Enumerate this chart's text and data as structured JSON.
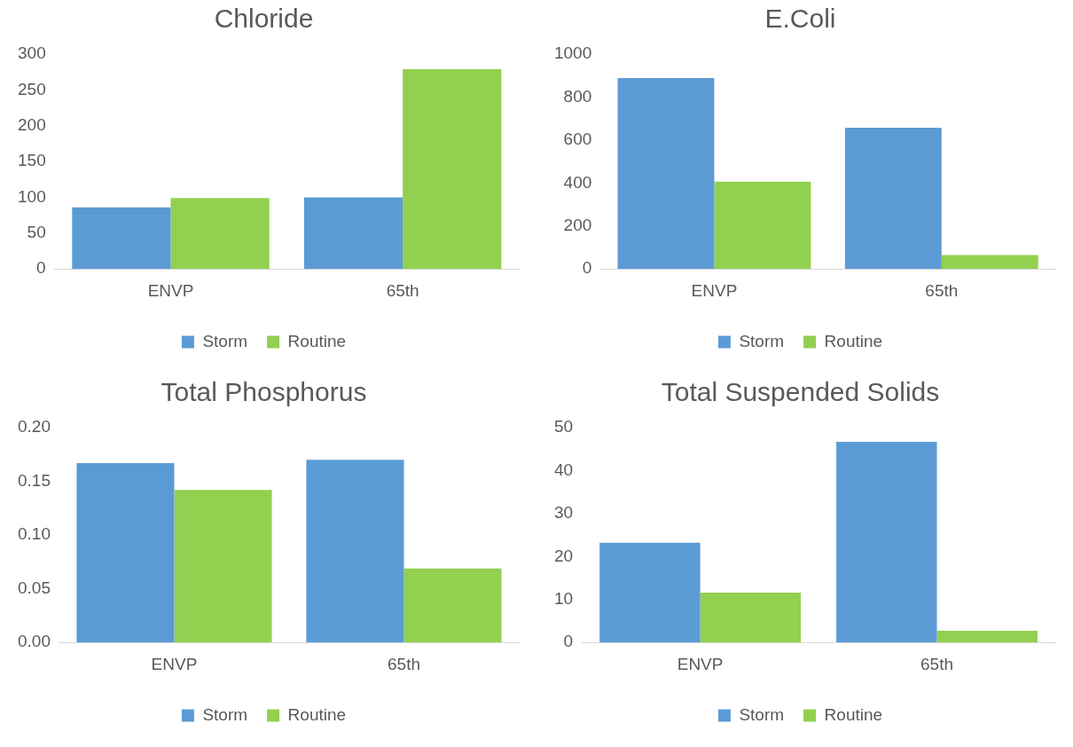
{
  "chart_data": [
    {
      "type": "bar",
      "title": "Chloride",
      "categories": [
        "ENVP",
        "65th"
      ],
      "series": [
        {
          "name": "Storm",
          "color": "#5b9bd5",
          "values": [
            86,
            100
          ]
        },
        {
          "name": "Routine",
          "color": "#92d050",
          "values": [
            99,
            279
          ]
        }
      ],
      "ylim": [
        0,
        300
      ],
      "yticks": [
        0,
        50,
        100,
        150,
        200,
        250,
        300
      ],
      "grid": false,
      "legend": "bottom"
    },
    {
      "type": "bar",
      "title": "E.Coli",
      "categories": [
        "ENVP",
        "65th"
      ],
      "series": [
        {
          "name": "Storm",
          "color": "#5b9bd5",
          "values": [
            889,
            657
          ]
        },
        {
          "name": "Routine",
          "color": "#92d050",
          "values": [
            407,
            65
          ]
        }
      ],
      "ylim": [
        0,
        1000
      ],
      "yticks": [
        0,
        200,
        400,
        600,
        800,
        1000
      ],
      "grid": false,
      "legend": "bottom"
    },
    {
      "type": "bar",
      "title": "Total Phosphorus",
      "categories": [
        "ENVP",
        "65th"
      ],
      "series": [
        {
          "name": "Storm",
          "color": "#5b9bd5",
          "values": [
            0.167,
            0.17
          ]
        },
        {
          "name": "Routine",
          "color": "#92d050",
          "values": [
            0.142,
            0.069
          ]
        }
      ],
      "ylim": [
        0,
        0.2
      ],
      "yticks": [
        {
          "value": 0,
          "label": "0.00"
        },
        {
          "value": 0.05,
          "label": "0.05"
        },
        {
          "value": 0.1,
          "label": "0.10"
        },
        {
          "value": 0.15,
          "label": "0.15"
        },
        {
          "value": 0.2,
          "label": "0.20"
        }
      ],
      "grid": false,
      "legend": "bottom"
    },
    {
      "type": "bar",
      "title": "Total Suspended Solids",
      "categories": [
        "ENVP",
        "65th"
      ],
      "series": [
        {
          "name": "Storm",
          "color": "#5b9bd5",
          "values": [
            23.2,
            46.7
          ]
        },
        {
          "name": "Routine",
          "color": "#92d050",
          "values": [
            11.6,
            2.7
          ]
        }
      ],
      "ylim": [
        0,
        50
      ],
      "yticks": [
        0,
        10,
        20,
        30,
        40,
        50
      ],
      "grid": false,
      "legend": "bottom"
    }
  ]
}
